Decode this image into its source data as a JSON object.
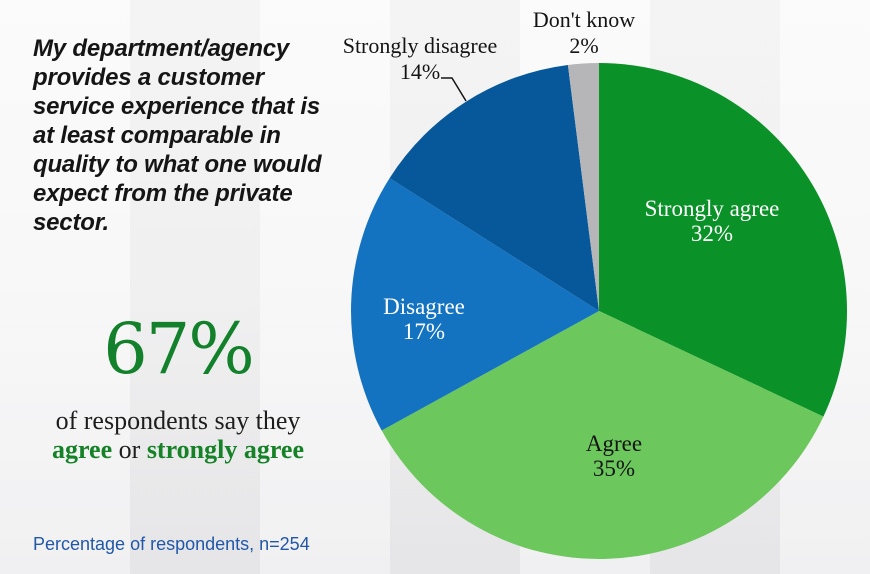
{
  "quote": {
    "text": "My department/agency\nprovides a customer\nservice experience that is\nat least comparable in\nquality to what one would\nexpect from the private\nsector."
  },
  "callout": {
    "percent": "67%",
    "line1": "of respondents say they",
    "agree_bold": "agree",
    "connector": " or ",
    "strongly_agree_bold": "strongly agree",
    "accent_color": "#168227"
  },
  "footnote": {
    "text": "Percentage of respondents, n=254",
    "color": "#2157a8"
  },
  "chart_data": {
    "type": "pie",
    "title": "",
    "start_angle_deg": 0,
    "direction": "clockwise",
    "legend_position": "none",
    "labels_on_slices": true,
    "n": 254,
    "slices": [
      {
        "label": "Strongly agree",
        "value": 32,
        "pct_label": "32%",
        "color": "#0a9128"
      },
      {
        "label": "Agree",
        "value": 35,
        "pct_label": "35%",
        "color": "#6cc75c"
      },
      {
        "label": "Disagree",
        "value": 17,
        "pct_label": "17%",
        "color": "#1473c0"
      },
      {
        "label": "Strongly disagree",
        "value": 14,
        "pct_label": "14%",
        "color": "#06589a"
      },
      {
        "label": "Don't know",
        "value": 2,
        "pct_label": "2%",
        "color": "#b6b6b8"
      }
    ]
  }
}
